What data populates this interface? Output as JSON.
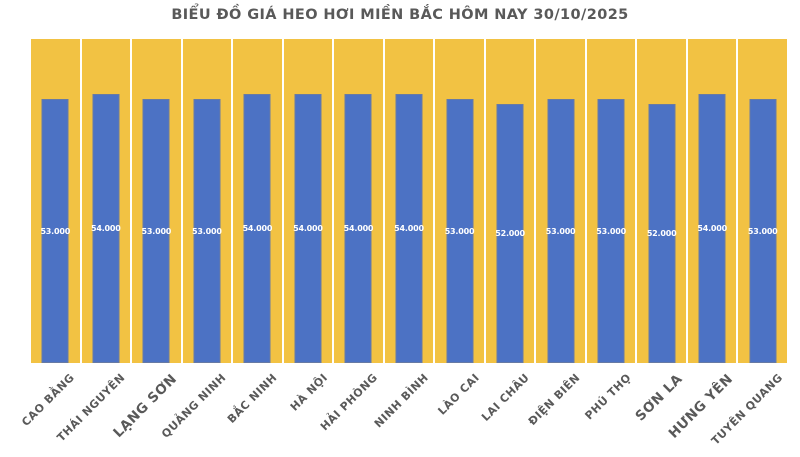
{
  "title": "BIỂU ĐỒ GIÁ HEO HƠI MIỀN BẮC HÔM NAY 30/10/2025",
  "chart_data": {
    "type": "bar",
    "title": "BIỂU ĐỒ GIÁ HEO HƠI MIỀN BẮC HÔM NAY 30/10/2025",
    "categories": [
      "CAO BẰNG",
      "THÁI NGUYÊN",
      "LẠNG SƠN",
      "QUẢNG NINH",
      "BẮC NINH",
      "HÀ NỘI",
      "HẢI PHÒNG",
      "NINH BÌNH",
      "LÀO CAI",
      "LAI CHÂU",
      "ĐIỆN BIÊN",
      "PHÚ THỌ",
      "SƠN LA",
      "HƯNG YÊN",
      "TUYÊN QUANG"
    ],
    "values": [
      53000,
      54000,
      53000,
      53000,
      54000,
      54000,
      54000,
      54000,
      53000,
      52000,
      53000,
      53000,
      52000,
      54000,
      53000
    ],
    "value_labels": [
      "53.000",
      "54.000",
      "53.000",
      "53.000",
      "54.000",
      "54.000",
      "54.000",
      "54.000",
      "53.000",
      "52.000",
      "53.000",
      "53.000",
      "52.000",
      "54.000",
      "53.000"
    ],
    "highlighted_categories": [
      "LẠNG SƠN",
      "SƠN LA",
      "HƯNG YÊN"
    ],
    "xlabel": "",
    "ylabel": "",
    "ylim": [
      0,
      65000
    ],
    "grid": false,
    "legend": "none",
    "value_label_position": "center",
    "x_label_rotation_deg": 45,
    "colors": {
      "bar": "#4C72C4",
      "plot_background": "#F2C243",
      "value_label_text": "#FFFFFF",
      "axis_label_text": "#595959",
      "title_text": "#595959",
      "page_background": "#FFFFFF"
    }
  }
}
